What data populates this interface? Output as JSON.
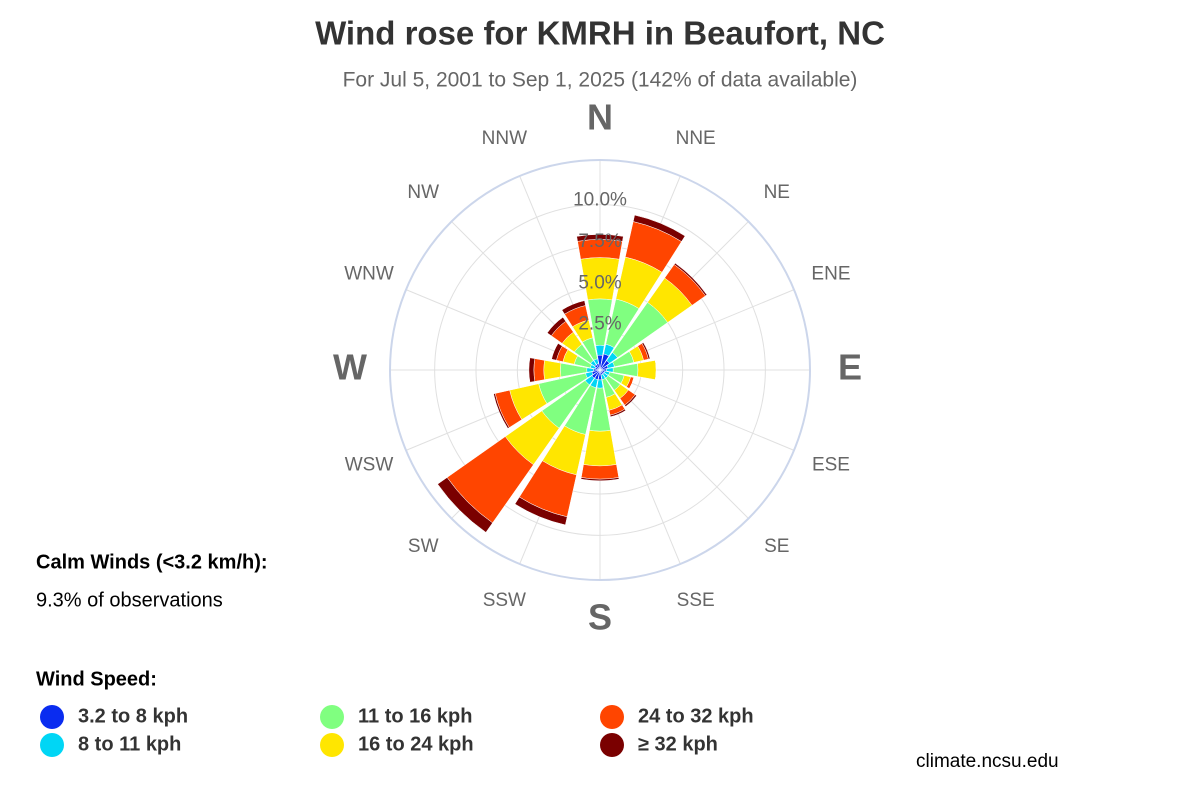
{
  "chart_data": {
    "type": "windrose",
    "title": "Wind rose for KMRH in Beaufort, NC",
    "subtitle": "For Jul 5, 2001 to Sep 1, 2025 (142% of data available)",
    "categories": [
      "N",
      "NNE",
      "NE",
      "ENE",
      "E",
      "ESE",
      "SE",
      "SSE",
      "S",
      "SSW",
      "SW",
      "WSW",
      "W",
      "WNW",
      "NW",
      "NNW"
    ],
    "series": [
      {
        "name": "3.2 to 8 kph",
        "color": "#0a2cf0",
        "values": [
          0.9,
          1.0,
          0.7,
          0.5,
          0.4,
          0.3,
          0.3,
          0.3,
          0.6,
          0.6,
          0.6,
          0.5,
          0.4,
          0.3,
          0.4,
          0.4
        ]
      },
      {
        "name": "8 to 11 kph",
        "color": "#00d6f5",
        "values": [
          0.6,
          0.6,
          0.6,
          0.4,
          0.4,
          0.3,
          0.3,
          0.3,
          0.5,
          0.5,
          0.5,
          0.4,
          0.4,
          0.3,
          0.3,
          0.3
        ]
      },
      {
        "name": "11 to 16 kph",
        "color": "#80ff80",
        "values": [
          2.8,
          2.8,
          3.7,
          1.2,
          1.5,
          0.9,
          0.9,
          1.1,
          2.6,
          2.9,
          3.2,
          2.9,
          1.6,
          1.0,
          1.2,
          1.3
        ]
      },
      {
        "name": "16 to 24 kph",
        "color": "#ffe600",
        "values": [
          2.5,
          2.6,
          1.8,
          0.6,
          1.1,
          0.4,
          0.6,
          0.8,
          2.1,
          2.5,
          2.7,
          1.8,
          1.0,
          0.7,
          0.9,
          1.1
        ]
      },
      {
        "name": "24 to 32 kph",
        "color": "#ff4500",
        "values": [
          1.1,
          2.2,
          1.0,
          0.3,
          0.0,
          0.2,
          0.5,
          0.3,
          0.8,
          2.6,
          4.3,
          0.9,
          0.6,
          0.4,
          0.8,
          0.9
        ]
      },
      {
        "name": "≥ 32 kph",
        "color": "#7a0000",
        "values": [
          0.3,
          0.4,
          0.1,
          0.1,
          0.0,
          0.0,
          0.1,
          0.1,
          0.1,
          0.5,
          0.7,
          0.1,
          0.3,
          0.3,
          0.3,
          0.3
        ]
      }
    ],
    "ylim": [
      0,
      12.7
    ],
    "yticks": [
      {
        "value": 2.5,
        "label": "2.5%"
      },
      {
        "value": 5,
        "label": "5.0%"
      },
      {
        "value": 7.5,
        "label": "7.5%"
      },
      {
        "value": 10,
        "label": "10.0%"
      }
    ],
    "grid": true,
    "calm_title": "Calm Winds (<3.2 km/h):",
    "calm_text": "9.3% of observations",
    "legend_title": "Wind Speed:",
    "source": "climate.ncsu.edu"
  }
}
